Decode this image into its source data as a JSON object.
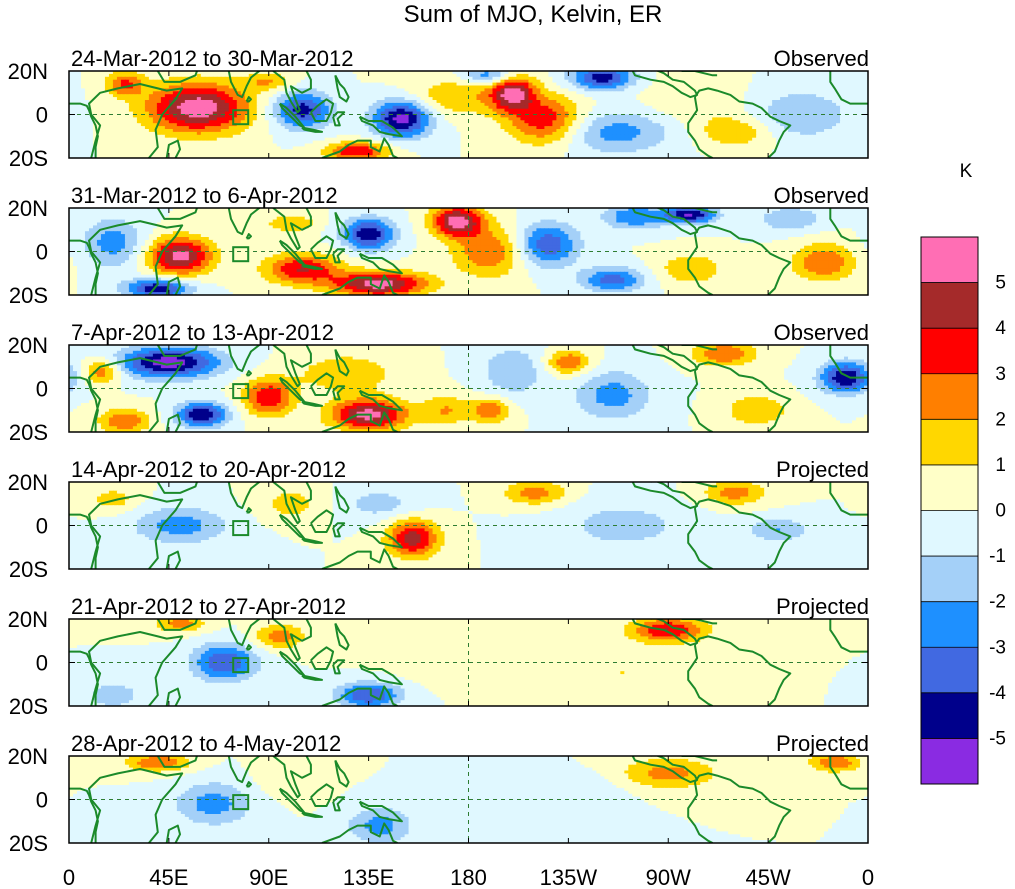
{
  "chart_data": {
    "type": "heatmap",
    "title": "Sum of MJO, Kelvin, ER",
    "units": "K",
    "x_tick_labels": [
      "0",
      "45E",
      "90E",
      "135E",
      "180",
      "135W",
      "90W",
      "45W",
      "0"
    ],
    "x_ticks_deg_east": [
      0,
      45,
      90,
      135,
      180,
      225,
      270,
      315,
      360
    ],
    "y_tick_labels": [
      "20N",
      "0",
      "20S"
    ],
    "y_ticks_lat": [
      20,
      0,
      -20
    ],
    "xlim": [
      0,
      360
    ],
    "ylim": [
      -20,
      20
    ],
    "reference_lines": {
      "equator_lat": 0,
      "dateline_lon": 180
    },
    "colorbar": {
      "labels": [
        "5",
        "4",
        "3",
        "2",
        "1",
        "0",
        "-1",
        "-2",
        "-3",
        "-4",
        "-5"
      ],
      "levels": [
        5,
        4,
        3,
        2,
        1,
        0,
        -1,
        -2,
        -3,
        -4,
        -5
      ],
      "colors": [
        "#ff6eb4",
        "#a52a2a",
        "#ff0000",
        "#ff7f00",
        "#ffd700",
        "#ffffc8",
        "#e0f8ff",
        "#a4d0f8",
        "#1e90ff",
        "#4169e1",
        "#00008b",
        "#8a2be2"
      ]
    },
    "panels": [
      {
        "date_range": "24-Mar-2012 to 30-Mar-2012",
        "status": "Observed",
        "features": [
          {
            "lon": 58,
            "lat": 3,
            "value": 5.8,
            "slon": 16,
            "slat": 8
          },
          {
            "lon": 25,
            "lat": 14,
            "value": 3,
            "slon": 6,
            "slat": 4
          },
          {
            "lon": 105,
            "lat": 2,
            "value": -4.5,
            "slon": 9,
            "slat": 6
          },
          {
            "lon": 90,
            "lat": 15,
            "value": 2,
            "slon": 8,
            "slat": 3
          },
          {
            "lon": 150,
            "lat": -2,
            "value": -5.5,
            "slon": 9,
            "slat": 6
          },
          {
            "lon": 200,
            "lat": 10,
            "value": 5,
            "slon": 7,
            "slat": 6
          },
          {
            "lon": 215,
            "lat": -3,
            "value": 4,
            "slon": 12,
            "slat": 8
          },
          {
            "lon": 175,
            "lat": 8,
            "value": 2,
            "slon": 15,
            "slat": 6
          },
          {
            "lon": 190,
            "lat": 18,
            "value": -3,
            "slon": 8,
            "slat": 3
          },
          {
            "lon": 240,
            "lat": 17,
            "value": -4.5,
            "slon": 10,
            "slat": 4
          },
          {
            "lon": 245,
            "lat": -8,
            "value": -2.5,
            "slon": 20,
            "slat": 7
          },
          {
            "lon": 280,
            "lat": 6,
            "value": 1,
            "slon": 15,
            "slat": 8
          },
          {
            "lon": 300,
            "lat": -8,
            "value": 2,
            "slon": 12,
            "slat": 5
          },
          {
            "lon": 330,
            "lat": 0,
            "value": -2,
            "slon": 15,
            "slat": 8
          },
          {
            "lon": 130,
            "lat": -17,
            "value": 4,
            "slon": 10,
            "slat": 3
          }
        ]
      },
      {
        "date_range": "31-Mar-2012 to 6-Apr-2012",
        "status": "Observed",
        "features": [
          {
            "lon": 50,
            "lat": -2,
            "value": 5.5,
            "slon": 10,
            "slat": 6
          },
          {
            "lon": 20,
            "lat": 4,
            "value": -2.5,
            "slon": 10,
            "slat": 8
          },
          {
            "lon": 40,
            "lat": -17,
            "value": -5,
            "slon": 10,
            "slat": 3
          },
          {
            "lon": 105,
            "lat": -8,
            "value": 4,
            "slon": 12,
            "slat": 5
          },
          {
            "lon": 140,
            "lat": -15,
            "value": 5.5,
            "slon": 15,
            "slat": 4
          },
          {
            "lon": 100,
            "lat": 13,
            "value": 2,
            "slon": 8,
            "slat": 3
          },
          {
            "lon": 135,
            "lat": 8,
            "value": -5,
            "slon": 8,
            "slat": 5
          },
          {
            "lon": 175,
            "lat": 14,
            "value": 5.5,
            "slon": 8,
            "slat": 5
          },
          {
            "lon": 190,
            "lat": 0,
            "value": 3,
            "slon": 12,
            "slat": 8
          },
          {
            "lon": 215,
            "lat": 3,
            "value": -4,
            "slon": 10,
            "slat": 7
          },
          {
            "lon": 255,
            "lat": 16,
            "value": -3,
            "slon": 10,
            "slat": 4
          },
          {
            "lon": 280,
            "lat": 17,
            "value": -5,
            "slon": 8,
            "slat": 3
          },
          {
            "lon": 280,
            "lat": -8,
            "value": 2,
            "slon": 10,
            "slat": 5
          },
          {
            "lon": 340,
            "lat": -5,
            "value": 3,
            "slon": 10,
            "slat": 6
          },
          {
            "lon": 325,
            "lat": 15,
            "value": -2,
            "slon": 10,
            "slat": 4
          },
          {
            "lon": 245,
            "lat": -13,
            "value": -3.5,
            "slon": 10,
            "slat": 4
          }
        ]
      },
      {
        "date_range": "7-Apr-2012 to 13-Apr-2012",
        "status": "Observed",
        "features": [
          {
            "lon": 45,
            "lat": 12,
            "value": -5.5,
            "slon": 16,
            "slat": 5
          },
          {
            "lon": 15,
            "lat": 8,
            "value": 3,
            "slon": 6,
            "slat": 4
          },
          {
            "lon": 25,
            "lat": -15,
            "value": 3,
            "slon": 8,
            "slat": 4
          },
          {
            "lon": 60,
            "lat": -12,
            "value": -5,
            "slon": 8,
            "slat": 4
          },
          {
            "lon": 90,
            "lat": -4,
            "value": 4,
            "slon": 8,
            "slat": 6
          },
          {
            "lon": 135,
            "lat": -12,
            "value": 5.5,
            "slon": 12,
            "slat": 5
          },
          {
            "lon": 125,
            "lat": 7,
            "value": 2,
            "slon": 15,
            "slat": 6
          },
          {
            "lon": 170,
            "lat": -10,
            "value": 2,
            "slon": 8,
            "slat": 5
          },
          {
            "lon": 190,
            "lat": -10,
            "value": 3,
            "slon": 6,
            "slat": 4
          },
          {
            "lon": 200,
            "lat": 8,
            "value": -2,
            "slon": 10,
            "slat": 8
          },
          {
            "lon": 225,
            "lat": 12,
            "value": 3,
            "slon": 7,
            "slat": 4
          },
          {
            "lon": 245,
            "lat": -3,
            "value": -2.5,
            "slon": 12,
            "slat": 8
          },
          {
            "lon": 295,
            "lat": 16,
            "value": 3,
            "slon": 10,
            "slat": 4
          },
          {
            "lon": 310,
            "lat": -10,
            "value": 2,
            "slon": 10,
            "slat": 5
          },
          {
            "lon": 350,
            "lat": 5,
            "value": -5,
            "slon": 8,
            "slat": 5
          }
        ]
      },
      {
        "date_range": "14-Apr-2012 to 20-Apr-2012",
        "status": "Projected",
        "features": [
          {
            "lon": 50,
            "lat": 0,
            "value": -2.5,
            "slon": 15,
            "slat": 6
          },
          {
            "lon": 20,
            "lat": 12,
            "value": 1.5,
            "slon": 8,
            "slat": 4
          },
          {
            "lon": 100,
            "lat": 10,
            "value": 1.5,
            "slon": 10,
            "slat": 5
          },
          {
            "lon": 155,
            "lat": -6,
            "value": 4.5,
            "slon": 8,
            "slat": 6
          },
          {
            "lon": 140,
            "lat": 10,
            "value": -1.5,
            "slon": 12,
            "slat": 5
          },
          {
            "lon": 210,
            "lat": 15,
            "value": 2.5,
            "slon": 10,
            "slat": 4
          },
          {
            "lon": 300,
            "lat": 15,
            "value": 2.5,
            "slon": 10,
            "slat": 4
          },
          {
            "lon": 250,
            "lat": 0,
            "value": -1.5,
            "slon": 20,
            "slat": 8
          },
          {
            "lon": 320,
            "lat": -2,
            "value": -2,
            "slon": 10,
            "slat": 4
          }
        ]
      },
      {
        "date_range": "21-Apr-2012 to 27-Apr-2012",
        "status": "Projected",
        "features": [
          {
            "lon": 70,
            "lat": 0,
            "value": -4,
            "slon": 10,
            "slat": 6
          },
          {
            "lon": 50,
            "lat": 18,
            "value": 2.5,
            "slon": 8,
            "slat": 3
          },
          {
            "lon": 95,
            "lat": 12,
            "value": 2.5,
            "slon": 8,
            "slat": 4
          },
          {
            "lon": 135,
            "lat": -15,
            "value": -4,
            "slon": 10,
            "slat": 4
          },
          {
            "lon": 270,
            "lat": 15,
            "value": 4,
            "slon": 12,
            "slat": 4
          },
          {
            "lon": 180,
            "lat": 0,
            "value": 1,
            "slon": 20,
            "slat": 6
          },
          {
            "lon": 250,
            "lat": -5,
            "value": 1,
            "slon": 20,
            "slat": 8
          },
          {
            "lon": 20,
            "lat": -15,
            "value": -2,
            "slon": 8,
            "slat": 4
          }
        ]
      },
      {
        "date_range": "28-Apr-2012 to 4-May-2012",
        "status": "Projected",
        "features": [
          {
            "lon": 65,
            "lat": -2,
            "value": -2.5,
            "slon": 12,
            "slat": 7
          },
          {
            "lon": 40,
            "lat": 17,
            "value": 3,
            "slon": 10,
            "slat": 3
          },
          {
            "lon": 140,
            "lat": -12,
            "value": -2.5,
            "slon": 10,
            "slat": 6
          },
          {
            "lon": 270,
            "lat": 12,
            "value": 2.5,
            "slon": 15,
            "slat": 5
          },
          {
            "lon": 345,
            "lat": 17,
            "value": 3,
            "slon": 8,
            "slat": 3
          },
          {
            "lon": 220,
            "lat": 5,
            "value": -1,
            "slon": 20,
            "slat": 5
          },
          {
            "lon": 100,
            "lat": 10,
            "value": 1,
            "slon": 10,
            "slat": 6
          }
        ]
      }
    ]
  }
}
